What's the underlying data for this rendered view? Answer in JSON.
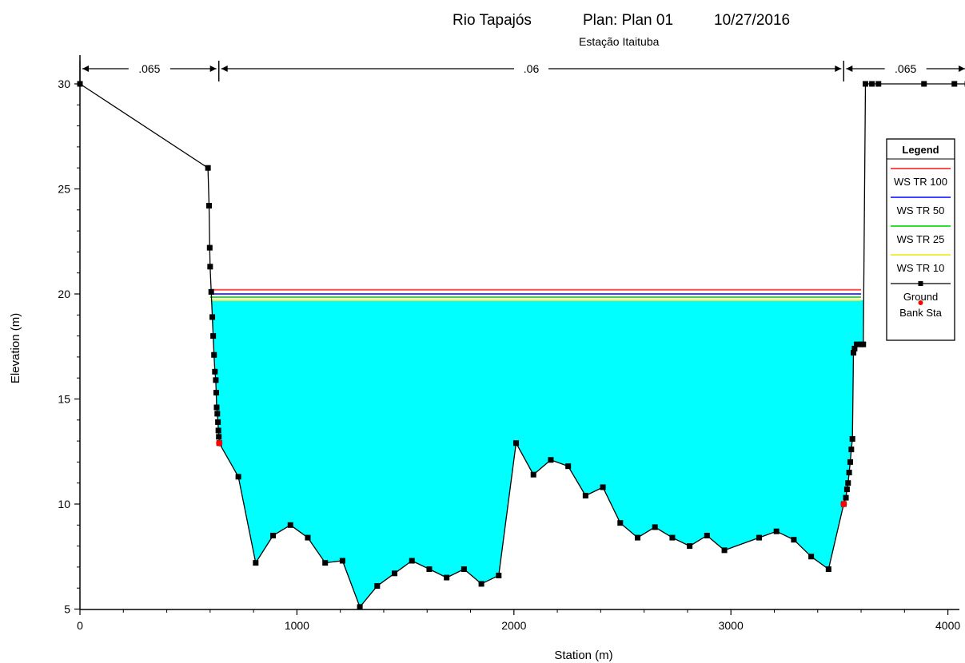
{
  "header": {
    "river": "Rio Tapajós",
    "plan": "Plan: Plan 01",
    "date": "10/27/2016",
    "station_name": "Estação Itaituba"
  },
  "chart_data": {
    "type": "line",
    "xlabel": "Station (m)",
    "ylabel": "Elevation (m)",
    "xlim": [
      0,
      4100
    ],
    "ylim": [
      5,
      30
    ],
    "x_ticks": [
      0,
      1000,
      2000,
      3000,
      4000
    ],
    "y_ticks": [
      5,
      10,
      15,
      20,
      25,
      30
    ],
    "grid": false,
    "legend_position": "right",
    "legend_title": "Legend",
    "water_fill_color": "#00ffff",
    "mannings": [
      {
        "from": 0,
        "to": 640,
        "label": ".065"
      },
      {
        "from": 640,
        "to": 3520,
        "label": ".06"
      },
      {
        "from": 3520,
        "to": 4090,
        "label": ".065"
      }
    ],
    "series": [
      {
        "name": "WS TR 100",
        "color": "#ff4b4b",
        "type": "line",
        "elevation": 20.2,
        "x_start": 600,
        "x_end": 3600
      },
      {
        "name": "WS TR 50",
        "color": "#4040ff",
        "type": "line",
        "elevation": 20.0,
        "x_start": 600,
        "x_end": 3600
      },
      {
        "name": "WS TR 25",
        "color": "#33dd33",
        "type": "line",
        "elevation": 19.85,
        "x_start": 600,
        "x_end": 3600
      },
      {
        "name": "WS TR 10",
        "color": "#eeee44",
        "type": "line",
        "elevation": 19.7,
        "x_start": 600,
        "x_end": 3600
      },
      {
        "name": "Ground",
        "color": "#000000",
        "type": "line-markers",
        "points": [
          [
            0,
            30.0
          ],
          [
            590,
            26.0
          ],
          [
            595,
            24.2
          ],
          [
            598,
            22.2
          ],
          [
            600,
            21.3
          ],
          [
            605,
            20.1
          ],
          [
            610,
            18.9
          ],
          [
            614,
            18.0
          ],
          [
            618,
            17.1
          ],
          [
            622,
            16.3
          ],
          [
            626,
            15.9
          ],
          [
            628,
            15.3
          ],
          [
            630,
            14.6
          ],
          [
            633,
            14.3
          ],
          [
            636,
            13.9
          ],
          [
            638,
            13.5
          ],
          [
            640,
            13.2
          ],
          [
            642,
            12.9
          ],
          [
            730,
            11.3
          ],
          [
            810,
            7.2
          ],
          [
            890,
            8.5
          ],
          [
            970,
            9.0
          ],
          [
            1050,
            8.4
          ],
          [
            1130,
            7.2
          ],
          [
            1210,
            7.3
          ],
          [
            1290,
            5.1
          ],
          [
            1370,
            6.1
          ],
          [
            1450,
            6.7
          ],
          [
            1530,
            7.3
          ],
          [
            1610,
            6.9
          ],
          [
            1690,
            6.5
          ],
          [
            1770,
            6.9
          ],
          [
            1850,
            6.2
          ],
          [
            1930,
            6.6
          ],
          [
            2010,
            12.9
          ],
          [
            2090,
            11.4
          ],
          [
            2170,
            12.1
          ],
          [
            2250,
            11.8
          ],
          [
            2330,
            10.4
          ],
          [
            2410,
            10.8
          ],
          [
            2490,
            9.1
          ],
          [
            2570,
            8.4
          ],
          [
            2650,
            8.9
          ],
          [
            2730,
            8.4
          ],
          [
            2810,
            8.0
          ],
          [
            2890,
            8.5
          ],
          [
            2970,
            7.8
          ],
          [
            3130,
            8.4
          ],
          [
            3210,
            8.7
          ],
          [
            3290,
            8.3
          ],
          [
            3370,
            7.5
          ],
          [
            3450,
            6.9
          ],
          [
            3520,
            10.0
          ],
          [
            3530,
            10.3
          ],
          [
            3535,
            10.7
          ],
          [
            3540,
            11.0
          ],
          [
            3545,
            11.5
          ],
          [
            3550,
            12.0
          ],
          [
            3555,
            12.6
          ],
          [
            3560,
            13.1
          ],
          [
            3565,
            17.2
          ],
          [
            3570,
            17.4
          ],
          [
            3580,
            17.6
          ],
          [
            3600,
            17.6
          ],
          [
            3610,
            17.6
          ],
          [
            3620,
            30.0
          ],
          [
            3650,
            30.0
          ],
          [
            3680,
            30.0
          ],
          [
            3890,
            30.0
          ],
          [
            4030,
            30.0
          ],
          [
            4090,
            30.0
          ]
        ]
      },
      {
        "name": "Bank Sta",
        "color": "#ff0000",
        "type": "markers",
        "points": [
          [
            642,
            12.9
          ],
          [
            3520,
            10.0
          ]
        ]
      }
    ]
  }
}
